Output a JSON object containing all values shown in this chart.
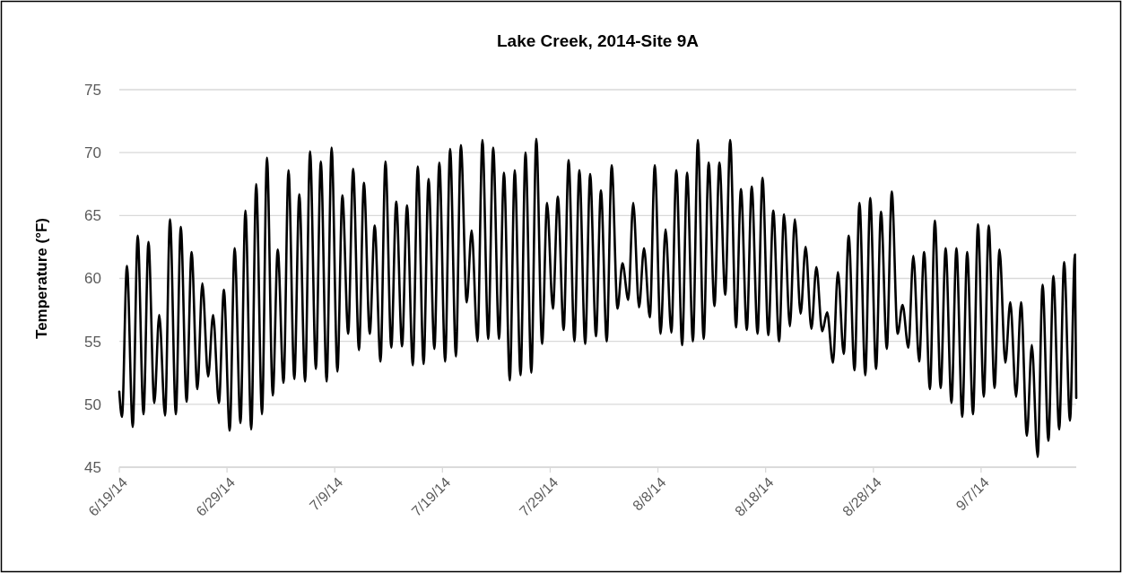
{
  "chart_data": {
    "type": "line",
    "title": "Lake Creek, 2014-Site 9A",
    "ylabel": "Temperature (°F)",
    "xlim": [
      "2014-06-19",
      "2014-09-15T20:00"
    ],
    "ylim": [
      45,
      75
    ],
    "yticks": [
      45,
      50,
      55,
      60,
      65,
      70,
      75
    ],
    "xticks": [
      {
        "value": "2014-06-19",
        "label": "6/19/14"
      },
      {
        "value": "2014-06-29",
        "label": "6/29/14"
      },
      {
        "value": "2014-07-09",
        "label": "7/9/14"
      },
      {
        "value": "2014-07-19",
        "label": "7/19/14"
      },
      {
        "value": "2014-07-29",
        "label": "7/29/14"
      },
      {
        "value": "2014-08-08",
        "label": "8/8/14"
      },
      {
        "value": "2014-08-18",
        "label": "8/18/14"
      },
      {
        "value": "2014-08-28",
        "label": "8/28/14"
      },
      {
        "value": "2014-09-07",
        "label": "9/7/14"
      }
    ],
    "grid": "y",
    "line_style": "solid",
    "series": [
      {
        "color": "#000000",
        "x": [
          "2014-06-19T00:00",
          "2014-06-19T06:00",
          "2014-06-19T17:00",
          "2014-06-20T06:00",
          "2014-06-20T17:00",
          "2014-06-21T06:00",
          "2014-06-21T17:00",
          "2014-06-22T06:00",
          "2014-06-22T17:00",
          "2014-06-23T06:00",
          "2014-06-23T17:00",
          "2014-06-24T06:00",
          "2014-06-24T17:00",
          "2014-06-25T06:00",
          "2014-06-25T17:00",
          "2014-06-26T06:00",
          "2014-06-26T17:00",
          "2014-06-27T06:00",
          "2014-06-27T17:00",
          "2014-06-28T06:00",
          "2014-06-28T17:00",
          "2014-06-29T06:00",
          "2014-06-29T17:00",
          "2014-06-30T06:00",
          "2014-06-30T17:00",
          "2014-07-01T06:00",
          "2014-07-01T17:00",
          "2014-07-02T06:00",
          "2014-07-02T17:00",
          "2014-07-03T06:00",
          "2014-07-03T17:00",
          "2014-07-04T06:00",
          "2014-07-04T17:00",
          "2014-07-05T06:00",
          "2014-07-05T17:00",
          "2014-07-06T06:00",
          "2014-07-06T17:00",
          "2014-07-07T06:00",
          "2014-07-07T17:00",
          "2014-07-08T06:00",
          "2014-07-08T17:00",
          "2014-07-09T06:00",
          "2014-07-09T17:00",
          "2014-07-10T06:00",
          "2014-07-10T17:00",
          "2014-07-11T06:00",
          "2014-07-11T17:00",
          "2014-07-12T06:00",
          "2014-07-12T17:00",
          "2014-07-13T06:00",
          "2014-07-13T17:00",
          "2014-07-14T06:00",
          "2014-07-14T17:00",
          "2014-07-15T06:00",
          "2014-07-15T17:00",
          "2014-07-16T06:00",
          "2014-07-16T17:00",
          "2014-07-17T06:00",
          "2014-07-17T17:00",
          "2014-07-18T06:00",
          "2014-07-18T17:00",
          "2014-07-19T06:00",
          "2014-07-19T17:00",
          "2014-07-20T06:00",
          "2014-07-20T17:00",
          "2014-07-21T06:00",
          "2014-07-21T17:00",
          "2014-07-22T06:00",
          "2014-07-22T17:00",
          "2014-07-23T06:00",
          "2014-07-23T17:00",
          "2014-07-24T06:00",
          "2014-07-24T17:00",
          "2014-07-25T06:00",
          "2014-07-25T17:00",
          "2014-07-26T06:00",
          "2014-07-26T17:00",
          "2014-07-27T06:00",
          "2014-07-27T17:00",
          "2014-07-28T06:00",
          "2014-07-28T17:00",
          "2014-07-29T06:00",
          "2014-07-29T17:00",
          "2014-07-30T06:00",
          "2014-07-30T17:00",
          "2014-07-31T06:00",
          "2014-07-31T17:00",
          "2014-08-01T06:00",
          "2014-08-01T17:00",
          "2014-08-02T06:00",
          "2014-08-02T17:00",
          "2014-08-03T06:00",
          "2014-08-03T17:00",
          "2014-08-04T06:00",
          "2014-08-04T17:00",
          "2014-08-05T06:00",
          "2014-08-05T17:00",
          "2014-08-06T06:00",
          "2014-08-06T17:00",
          "2014-08-07T06:00",
          "2014-08-07T17:00",
          "2014-08-08T06:00",
          "2014-08-08T17:00",
          "2014-08-09T06:00",
          "2014-08-09T17:00",
          "2014-08-10T06:00",
          "2014-08-10T17:00",
          "2014-08-11T06:00",
          "2014-08-11T17:00",
          "2014-08-12T06:00",
          "2014-08-12T17:00",
          "2014-08-13T06:00",
          "2014-08-13T17:00",
          "2014-08-14T06:00",
          "2014-08-14T17:00",
          "2014-08-15T06:00",
          "2014-08-15T17:00",
          "2014-08-16T06:00",
          "2014-08-16T17:00",
          "2014-08-17T06:00",
          "2014-08-17T17:00",
          "2014-08-18T06:00",
          "2014-08-18T17:00",
          "2014-08-19T06:00",
          "2014-08-19T17:00",
          "2014-08-20T06:00",
          "2014-08-20T17:00",
          "2014-08-21T06:00",
          "2014-08-21T17:00",
          "2014-08-22T06:00",
          "2014-08-22T17:00",
          "2014-08-23T06:00",
          "2014-08-23T17:00",
          "2014-08-24T06:00",
          "2014-08-24T17:00",
          "2014-08-25T06:00",
          "2014-08-25T17:00",
          "2014-08-26T06:00",
          "2014-08-26T17:00",
          "2014-08-27T06:00",
          "2014-08-27T17:00",
          "2014-08-28T06:00",
          "2014-08-28T17:00",
          "2014-08-29T06:00",
          "2014-08-29T17:00",
          "2014-08-30T06:00",
          "2014-08-30T17:00",
          "2014-08-31T06:00",
          "2014-08-31T17:00",
          "2014-09-01T06:00",
          "2014-09-01T17:00",
          "2014-09-02T06:00",
          "2014-09-02T17:00",
          "2014-09-03T06:00",
          "2014-09-03T17:00",
          "2014-09-04T06:00",
          "2014-09-04T17:00",
          "2014-09-05T06:00",
          "2014-09-05T17:00",
          "2014-09-06T06:00",
          "2014-09-06T17:00",
          "2014-09-07T06:00",
          "2014-09-07T17:00",
          "2014-09-08T06:00",
          "2014-09-08T17:00",
          "2014-09-09T06:00",
          "2014-09-09T17:00",
          "2014-09-10T06:00",
          "2014-09-10T17:00",
          "2014-09-11T06:00",
          "2014-09-11T17:00",
          "2014-09-12T06:00",
          "2014-09-12T17:00",
          "2014-09-13T06:00",
          "2014-09-13T17:00",
          "2014-09-14T06:00",
          "2014-09-14T17:00",
          "2014-09-15T06:00",
          "2014-09-15T17:00",
          "2014-09-15T20:00"
        ],
        "values": [
          51.0,
          49.0,
          61.0,
          48.2,
          63.4,
          49.2,
          62.9,
          50.1,
          57.1,
          49.1,
          64.7,
          49.2,
          64.1,
          50.2,
          62.1,
          51.2,
          59.6,
          52.2,
          57.1,
          50.1,
          59.1,
          47.9,
          62.4,
          48.5,
          65.4,
          48.0,
          67.5,
          49.2,
          69.6,
          50.7,
          62.3,
          51.7,
          68.6,
          52.0,
          66.7,
          51.8,
          70.1,
          52.8,
          69.3,
          51.8,
          70.4,
          52.6,
          66.6,
          55.6,
          68.7,
          54.3,
          67.6,
          55.6,
          64.2,
          53.4,
          69.3,
          54.5,
          66.1,
          54.6,
          65.8,
          53.1,
          68.9,
          53.2,
          67.9,
          54.4,
          69.2,
          53.4,
          70.3,
          53.8,
          70.6,
          58.1,
          63.8,
          55.0,
          71.0,
          55.2,
          70.4,
          55.2,
          68.4,
          51.9,
          68.6,
          52.3,
          70.0,
          52.5,
          71.1,
          54.8,
          66.0,
          57.6,
          66.5,
          55.9,
          69.4,
          55.0,
          68.6,
          54.8,
          68.3,
          55.4,
          67.0,
          55.0,
          69.0,
          57.6,
          61.2,
          58.3,
          66.0,
          57.7,
          62.4,
          56.9,
          69.0,
          55.6,
          63.9,
          55.7,
          68.6,
          54.7,
          68.4,
          55.0,
          71.0,
          55.2,
          69.2,
          57.8,
          69.2,
          58.7,
          71.0,
          56.1,
          67.1,
          55.9,
          67.3,
          55.6,
          68.0,
          55.5,
          65.4,
          55.0,
          65.1,
          56.2,
          64.7,
          57.2,
          62.5,
          56.0,
          60.9,
          55.8,
          57.3,
          53.3,
          60.5,
          54.0,
          63.4,
          52.7,
          66.0,
          52.3,
          66.4,
          52.8,
          65.3,
          54.4,
          66.9,
          55.6,
          57.9,
          54.5,
          61.8,
          53.4,
          62.1,
          51.2,
          64.6,
          51.3,
          62.4,
          50.1,
          62.4,
          49.0,
          62.1,
          49.2,
          64.3,
          50.6,
          64.2,
          51.3,
          62.3,
          53.3,
          58.1,
          50.6,
          58.1,
          47.5,
          54.7,
          45.8,
          59.5,
          47.1,
          60.2,
          48.0,
          61.3,
          48.7,
          61.9,
          50.5
        ]
      }
    ]
  }
}
